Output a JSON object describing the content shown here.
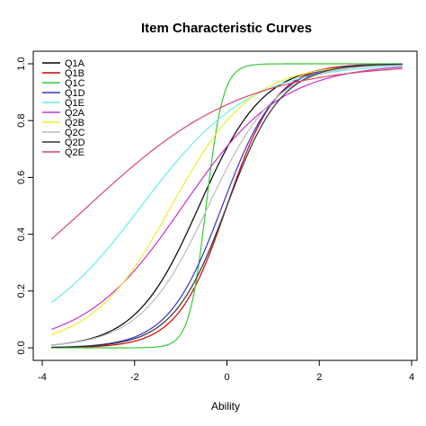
{
  "chart_data": {
    "type": "line",
    "title": "Item Characteristic Curves",
    "xlabel": "Ability",
    "ylabel": "",
    "xlim": [
      -4,
      4
    ],
    "ylim": [
      0,
      1
    ],
    "xticks": [
      -4,
      -2,
      0,
      2,
      4
    ],
    "yticks": [
      0.0,
      0.2,
      0.4,
      0.6,
      0.8,
      1.0
    ],
    "ytick_labels": [
      "0.0",
      "0.2",
      "0.4",
      "0.6",
      "0.8",
      "1.0"
    ],
    "legend_position": "top-left",
    "x_range": [
      -3.8,
      3.8
    ],
    "series": [
      {
        "name": "Q1A",
        "color": "#000000",
        "a": 0.85,
        "b": -0.6,
        "c": 0.0
      },
      {
        "name": "Q1B",
        "color": "#cc0000",
        "a": 1.1,
        "b": 0.0,
        "c": 0.0
      },
      {
        "name": "Q1C",
        "color": "#33cc33",
        "a": 3.2,
        "b": -0.45,
        "c": 0.0
      },
      {
        "name": "Q1D",
        "color": "#3333cc",
        "a": 1.0,
        "b": -0.1,
        "c": 0.0
      },
      {
        "name": "Q1E",
        "color": "#66eeee",
        "a": 0.5,
        "b": -1.85,
        "c": 0.0
      },
      {
        "name": "Q2A",
        "color": "#cc33cc",
        "a": 0.55,
        "b": -0.95,
        "c": 0.0
      },
      {
        "name": "Q2B",
        "color": "#eeee33",
        "a": 0.68,
        "b": -1.2,
        "c": 0.0
      },
      {
        "name": "Q2C",
        "color": "#bbbbbb",
        "a": 0.8,
        "b": -0.4,
        "c": 0.0
      },
      {
        "name": "Q2D",
        "color": "#333333",
        "a": 1.0,
        "b": 0.0,
        "c": 0.0
      },
      {
        "name": "Q2E",
        "color": "#dd4466",
        "a": 0.35,
        "b": -3.0,
        "c": 0.0
      }
    ]
  }
}
